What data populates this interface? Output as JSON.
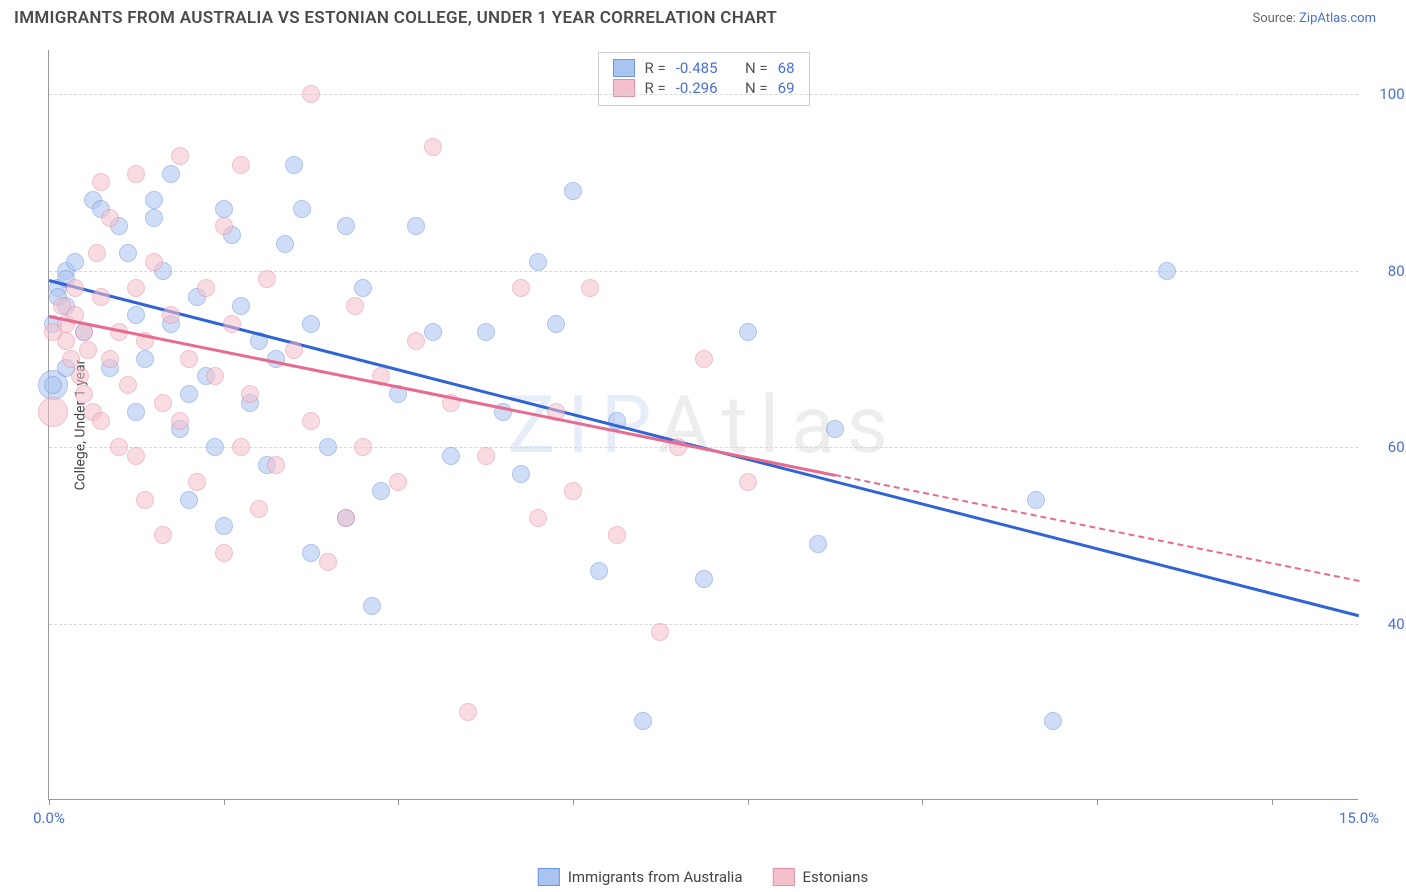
{
  "header": {
    "title": "IMMIGRANTS FROM AUSTRALIA VS ESTONIAN COLLEGE, UNDER 1 YEAR CORRELATION CHART",
    "source_prefix": "Source: ",
    "source_link": "ZipAtlas.com"
  },
  "watermark": {
    "z": "Z",
    "i": "I",
    "p": "P",
    "rest": "Atlas"
  },
  "chart": {
    "type": "scatter",
    "y_axis_title": "College, Under 1 year",
    "xlim": [
      0,
      15
    ],
    "ylim": [
      20,
      105
    ],
    "xticks": [
      0,
      2,
      4,
      6,
      8,
      10,
      12,
      14
    ],
    "xtick_labels": {
      "0": "0.0%",
      "15": "15.0%"
    },
    "yticks": [
      40,
      60,
      80,
      100
    ],
    "ytick_labels": {
      "40": "40.0%",
      "60": "60.0%",
      "80": "80.0%",
      "100": "100.0%"
    },
    "grid_color": "#d8d8d8",
    "background_color": "#ffffff",
    "marker_radius": 9,
    "series": [
      {
        "name": "Immigrants from Australia",
        "marker_fill": "#a9c4ef",
        "marker_stroke": "#6f96dd",
        "trend_color": "#2f63d6",
        "trend": {
          "x0": 0,
          "y0": 79,
          "x1": 15,
          "y1": 41,
          "dash_from_x": null
        },
        "stats": {
          "R": "-0.485",
          "N": "68"
        },
        "points": [
          [
            0.1,
            78
          ],
          [
            0.1,
            77
          ],
          [
            0.2,
            80
          ],
          [
            0.2,
            79
          ],
          [
            0.2,
            76
          ],
          [
            0.2,
            69
          ],
          [
            0.3,
            81
          ],
          [
            0.4,
            73
          ],
          [
            0.5,
            88
          ],
          [
            0.6,
            87
          ],
          [
            0.7,
            69
          ],
          [
            0.8,
            85
          ],
          [
            0.9,
            82
          ],
          [
            1.0,
            75
          ],
          [
            1.0,
            64
          ],
          [
            1.1,
            70
          ],
          [
            1.2,
            88
          ],
          [
            1.2,
            86
          ],
          [
            1.3,
            80
          ],
          [
            1.4,
            91
          ],
          [
            1.4,
            74
          ],
          [
            1.5,
            62
          ],
          [
            1.6,
            66
          ],
          [
            1.6,
            54
          ],
          [
            1.7,
            77
          ],
          [
            1.8,
            68
          ],
          [
            1.9,
            60
          ],
          [
            2.0,
            87
          ],
          [
            2.0,
            51
          ],
          [
            2.1,
            84
          ],
          [
            2.2,
            76
          ],
          [
            2.3,
            65
          ],
          [
            2.4,
            72
          ],
          [
            2.5,
            58
          ],
          [
            2.6,
            70
          ],
          [
            2.7,
            83
          ],
          [
            2.8,
            92
          ],
          [
            2.9,
            87
          ],
          [
            3.0,
            74
          ],
          [
            3.0,
            48
          ],
          [
            3.2,
            60
          ],
          [
            3.4,
            85
          ],
          [
            3.4,
            52
          ],
          [
            3.6,
            78
          ],
          [
            3.7,
            42
          ],
          [
            3.8,
            55
          ],
          [
            4.0,
            66
          ],
          [
            4.2,
            85
          ],
          [
            4.4,
            73
          ],
          [
            4.6,
            59
          ],
          [
            5.0,
            73
          ],
          [
            5.2,
            64
          ],
          [
            5.4,
            57
          ],
          [
            5.6,
            81
          ],
          [
            5.8,
            74
          ],
          [
            6.0,
            89
          ],
          [
            6.3,
            46
          ],
          [
            6.5,
            63
          ],
          [
            6.8,
            29
          ],
          [
            7.5,
            45
          ],
          [
            8.0,
            73
          ],
          [
            8.8,
            49
          ],
          [
            9.0,
            62
          ],
          [
            11.3,
            54
          ],
          [
            11.5,
            29
          ],
          [
            12.8,
            80
          ],
          [
            0.05,
            67
          ],
          [
            0.05,
            74
          ]
        ],
        "big_points": [
          [
            0.05,
            67
          ]
        ]
      },
      {
        "name": "Estonians",
        "marker_fill": "#f4c0cc",
        "marker_stroke": "#e78fa6",
        "trend_color": "#e66b8f",
        "trend": {
          "x0": 0,
          "y0": 75,
          "x1": 15,
          "y1": 45,
          "dash_from_x": 9.0
        },
        "stats": {
          "R": "-0.296",
          "N": "69"
        },
        "points": [
          [
            0.15,
            76
          ],
          [
            0.2,
            74
          ],
          [
            0.2,
            72
          ],
          [
            0.25,
            70
          ],
          [
            0.3,
            78
          ],
          [
            0.3,
            75
          ],
          [
            0.35,
            68
          ],
          [
            0.4,
            73
          ],
          [
            0.4,
            66
          ],
          [
            0.45,
            71
          ],
          [
            0.5,
            64
          ],
          [
            0.55,
            82
          ],
          [
            0.6,
            77
          ],
          [
            0.6,
            63
          ],
          [
            0.7,
            86
          ],
          [
            0.7,
            70
          ],
          [
            0.8,
            73
          ],
          [
            0.8,
            60
          ],
          [
            0.9,
            67
          ],
          [
            1.0,
            78
          ],
          [
            1.0,
            59
          ],
          [
            1.1,
            72
          ],
          [
            1.1,
            54
          ],
          [
            1.2,
            81
          ],
          [
            1.3,
            65
          ],
          [
            1.3,
            50
          ],
          [
            1.4,
            75
          ],
          [
            1.5,
            93
          ],
          [
            1.5,
            63
          ],
          [
            1.6,
            70
          ],
          [
            1.7,
            56
          ],
          [
            1.8,
            78
          ],
          [
            1.9,
            68
          ],
          [
            2.0,
            85
          ],
          [
            2.0,
            48
          ],
          [
            2.1,
            74
          ],
          [
            2.2,
            60
          ],
          [
            2.3,
            66
          ],
          [
            2.4,
            53
          ],
          [
            2.5,
            79
          ],
          [
            2.6,
            58
          ],
          [
            2.8,
            71
          ],
          [
            3.0,
            100
          ],
          [
            3.0,
            63
          ],
          [
            3.2,
            47
          ],
          [
            3.4,
            52
          ],
          [
            3.5,
            76
          ],
          [
            3.6,
            60
          ],
          [
            3.8,
            68
          ],
          [
            4.0,
            56
          ],
          [
            4.2,
            72
          ],
          [
            4.4,
            94
          ],
          [
            4.6,
            65
          ],
          [
            4.8,
            30
          ],
          [
            5.0,
            59
          ],
          [
            5.4,
            78
          ],
          [
            5.6,
            52
          ],
          [
            5.8,
            64
          ],
          [
            6.0,
            55
          ],
          [
            6.2,
            78
          ],
          [
            6.5,
            50
          ],
          [
            7.0,
            39
          ],
          [
            7.2,
            60
          ],
          [
            7.5,
            70
          ],
          [
            8.0,
            56
          ],
          [
            1.0,
            91
          ],
          [
            0.6,
            90
          ],
          [
            2.2,
            92
          ],
          [
            0.05,
            73
          ]
        ],
        "big_points": [
          [
            0.05,
            64
          ]
        ]
      }
    ]
  },
  "stats_box": {
    "R_label": "R =",
    "N_label": "N ="
  },
  "legend_bottom": [
    {
      "label": "Immigrants from Australia",
      "fill": "#a9c4ef",
      "stroke": "#6f96dd"
    },
    {
      "label": "Estonians",
      "fill": "#f4c0cc",
      "stroke": "#e78fa6"
    }
  ]
}
